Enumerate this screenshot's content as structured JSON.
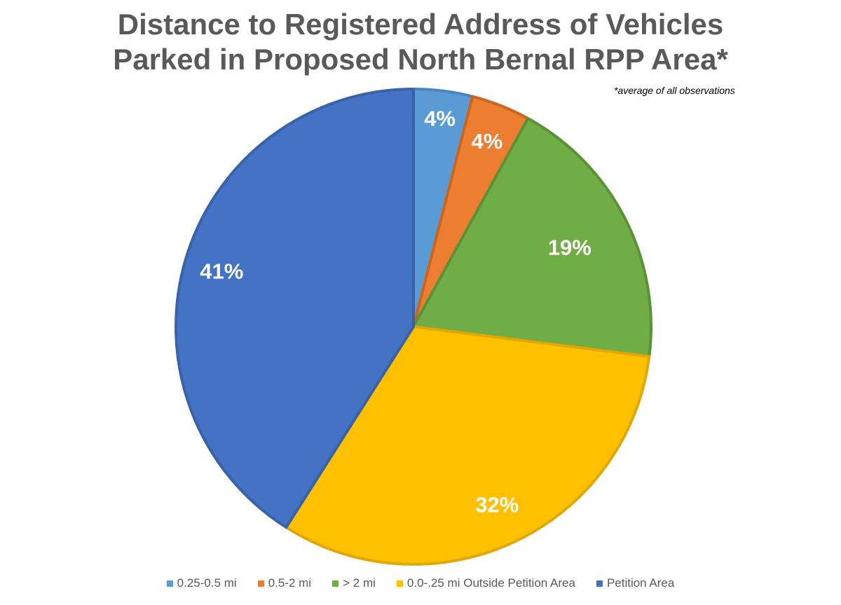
{
  "title_line1": "Distance to Registered Address of Vehicles",
  "title_line2": "Parked in Proposed North Bernal RPP Area*",
  "note": "*average of all observations",
  "chart_data": {
    "type": "pie",
    "title": "Distance to Registered Address of Vehicles Parked in Proposed North Bernal RPP Area*",
    "categories": [
      "0.25-0.5 mi",
      "0.5-2 mi",
      "> 2 mi",
      "0.0-.25 mi Outside Petition Area",
      "Petition Area"
    ],
    "values": [
      4,
      4,
      19,
      32,
      41
    ],
    "labels": [
      "4%",
      "4%",
      "19%",
      "32%",
      "41%"
    ],
    "colors": [
      "#5B9BD5",
      "#ED7D31",
      "#70AD47",
      "#FFC000",
      "#4472C4"
    ],
    "legend_position": "bottom"
  }
}
